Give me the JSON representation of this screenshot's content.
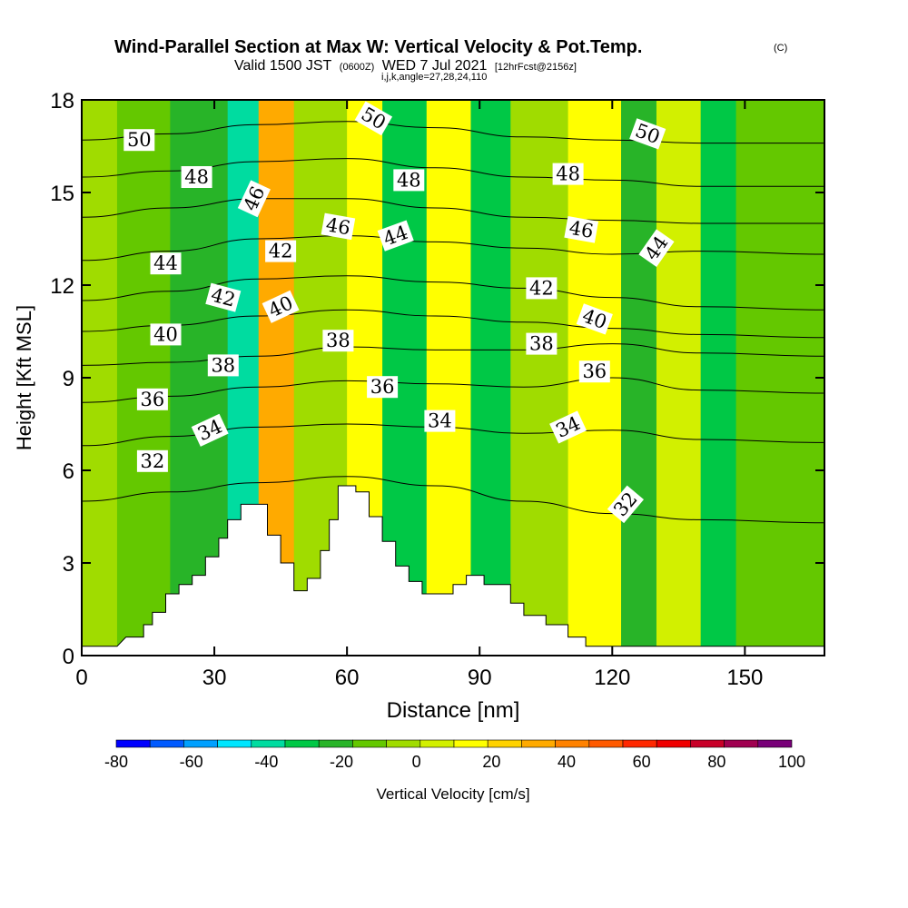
{
  "chart_data": {
    "type": "heatmap",
    "title": "Wind-Parallel Section at Max W: Vertical Velocity & Pot.Temp.",
    "title_mark": "(C)",
    "subtitle_parts": {
      "valid": "Valid 1500 JST",
      "utc": "(0600Z)",
      "date": "WED 7 Jul 2021",
      "fcst": "[12hrFcst@2156z]"
    },
    "subtitle2": "i,j,k,angle=27,28,24,110",
    "xlabel": "Distance [nm]",
    "ylabel": "Height [Kft MSL]",
    "xlim": [
      0,
      168
    ],
    "ylim": [
      0,
      18
    ],
    "x_ticks": [
      "0",
      "30",
      "60",
      "90",
      "120",
      "150"
    ],
    "y_ticks": [
      "0",
      "3",
      "6",
      "9",
      "12",
      "15",
      "18"
    ],
    "colorbar": {
      "title": "Vertical Velocity [cm/s]",
      "labels": [
        "-80",
        "-60",
        "-40",
        "-20",
        "0",
        "20",
        "40",
        "60",
        "80",
        "100"
      ],
      "colors": [
        "#0000ff",
        "#005aff",
        "#00a0ff",
        "#00e6ff",
        "#00dca0",
        "#00c846",
        "#28b428",
        "#64c800",
        "#a0dc00",
        "#d2f000",
        "#ffff00",
        "#ffd200",
        "#ffaa00",
        "#ff8200",
        "#ff5a00",
        "#ff2800",
        "#f00000",
        "#c80028",
        "#a00050",
        "#780078"
      ]
    },
    "velocity_cells": [
      {
        "x0": 0,
        "x1": 8,
        "y0": 0,
        "y1": 18,
        "v": 0
      },
      {
        "x0": 8,
        "x1": 20,
        "y0": 0,
        "y1": 18,
        "v": -5
      },
      {
        "x0": 20,
        "x1": 33,
        "y0": 0,
        "y1": 18,
        "v": -15
      },
      {
        "x0": 33,
        "x1": 40,
        "y0": 0,
        "y1": 18,
        "v": -35
      },
      {
        "x0": 40,
        "x1": 48,
        "y0": 0,
        "y1": 18,
        "v": 45
      },
      {
        "x0": 48,
        "x1": 60,
        "y0": 0,
        "y1": 18,
        "v": 5
      },
      {
        "x0": 60,
        "x1": 68,
        "y0": 0,
        "y1": 18,
        "v": 25
      },
      {
        "x0": 68,
        "x1": 78,
        "y0": 0,
        "y1": 18,
        "v": -25
      },
      {
        "x0": 78,
        "x1": 88,
        "y0": 0,
        "y1": 18,
        "v": 25
      },
      {
        "x0": 88,
        "x1": 97,
        "y0": 0,
        "y1": 18,
        "v": -30
      },
      {
        "x0": 97,
        "x1": 110,
        "y0": 0,
        "y1": 18,
        "v": 0
      },
      {
        "x0": 110,
        "x1": 122,
        "y0": 0,
        "y1": 18,
        "v": 25
      },
      {
        "x0": 122,
        "x1": 130,
        "y0": 0,
        "y1": 18,
        "v": -15
      },
      {
        "x0": 130,
        "x1": 140,
        "y0": 0,
        "y1": 18,
        "v": 15
      },
      {
        "x0": 140,
        "x1": 148,
        "y0": 0,
        "y1": 18,
        "v": -25
      },
      {
        "x0": 148,
        "x1": 168,
        "y0": 0,
        "y1": 18,
        "v": -5
      }
    ],
    "terrain": [
      [
        0,
        0.3
      ],
      [
        8,
        0.3
      ],
      [
        10,
        0.6
      ],
      [
        14,
        0.6
      ],
      [
        14,
        1
      ],
      [
        16,
        1
      ],
      [
        16,
        1.4
      ],
      [
        19,
        1.4
      ],
      [
        19,
        2
      ],
      [
        22,
        2
      ],
      [
        22,
        2.3
      ],
      [
        25,
        2.3
      ],
      [
        25,
        2.6
      ],
      [
        28,
        2.6
      ],
      [
        28,
        3.2
      ],
      [
        31,
        3.2
      ],
      [
        31,
        3.8
      ],
      [
        33,
        3.8
      ],
      [
        33,
        4.4
      ],
      [
        36,
        4.4
      ],
      [
        36,
        4.9
      ],
      [
        42,
        4.9
      ],
      [
        42,
        3.9
      ],
      [
        45,
        3.9
      ],
      [
        45,
        3.0
      ],
      [
        48,
        3.0
      ],
      [
        48,
        2.1
      ],
      [
        51,
        2.1
      ],
      [
        51,
        2.5
      ],
      [
        54,
        2.5
      ],
      [
        54,
        3.4
      ],
      [
        56,
        3.4
      ],
      [
        56,
        4.4
      ],
      [
        58,
        4.4
      ],
      [
        58,
        5.5
      ],
      [
        62,
        5.5
      ],
      [
        62,
        5.3
      ],
      [
        65,
        5.3
      ],
      [
        65,
        4.5
      ],
      [
        68,
        4.5
      ],
      [
        68,
        3.7
      ],
      [
        71,
        3.7
      ],
      [
        71,
        2.9
      ],
      [
        74,
        2.9
      ],
      [
        74,
        2.4
      ],
      [
        77,
        2.4
      ],
      [
        77,
        2.0
      ],
      [
        84,
        2.0
      ],
      [
        84,
        2.3
      ],
      [
        87,
        2.3
      ],
      [
        87,
        2.6
      ],
      [
        91,
        2.6
      ],
      [
        91,
        2.3
      ],
      [
        97,
        2.3
      ],
      [
        97,
        1.7
      ],
      [
        100,
        1.7
      ],
      [
        100,
        1.3
      ],
      [
        105,
        1.3
      ],
      [
        105,
        1.0
      ],
      [
        110,
        1.0
      ],
      [
        110,
        0.6
      ],
      [
        114,
        0.6
      ],
      [
        114,
        0.3
      ],
      [
        168,
        0.3
      ]
    ],
    "theta_contours": [
      {
        "value": "32",
        "x": [
          0,
          20,
          40,
          60,
          80,
          100,
          120,
          140,
          168
        ],
        "y": [
          5.0,
          5.3,
          5.6,
          5.8,
          5.5,
          5.0,
          4.6,
          4.4,
          4.3
        ]
      },
      {
        "value": "34",
        "x": [
          0,
          20,
          40,
          60,
          80,
          100,
          120,
          140,
          168
        ],
        "y": [
          6.8,
          7.1,
          7.4,
          7.5,
          7.4,
          7.2,
          7.3,
          7.0,
          6.9
        ]
      },
      {
        "value": "36",
        "x": [
          0,
          20,
          40,
          60,
          80,
          100,
          120,
          140,
          168
        ],
        "y": [
          8.2,
          8.4,
          8.7,
          8.9,
          8.8,
          8.7,
          9.0,
          8.6,
          8.5
        ]
      },
      {
        "value": "38",
        "x": [
          0,
          20,
          40,
          60,
          80,
          100,
          120,
          140,
          168
        ],
        "y": [
          9.4,
          9.5,
          9.7,
          10.0,
          9.9,
          9.9,
          10.1,
          9.8,
          9.7
        ]
      },
      {
        "value": "40",
        "x": [
          0,
          20,
          40,
          60,
          80,
          100,
          120,
          140,
          168
        ],
        "y": [
          10.5,
          10.7,
          11.0,
          11.2,
          11.0,
          10.8,
          10.6,
          10.4,
          10.3
        ]
      },
      {
        "value": "42",
        "x": [
          0,
          20,
          40,
          60,
          80,
          100,
          120,
          140,
          168
        ],
        "y": [
          11.5,
          11.8,
          12.2,
          12.3,
          12.1,
          11.9,
          11.6,
          11.3,
          11.2
        ]
      },
      {
        "value": "44",
        "x": [
          0,
          20,
          40,
          60,
          80,
          100,
          120,
          140,
          168
        ],
        "y": [
          12.8,
          13.1,
          13.5,
          13.6,
          13.4,
          13.2,
          13.0,
          13.1,
          13.0
        ]
      },
      {
        "value": "46",
        "x": [
          0,
          20,
          40,
          60,
          80,
          100,
          120,
          140,
          168
        ],
        "y": [
          14.2,
          14.5,
          14.8,
          14.8,
          14.5,
          14.2,
          14.1,
          14.0,
          14.0
        ]
      },
      {
        "value": "48",
        "x": [
          0,
          20,
          40,
          60,
          80,
          100,
          120,
          140,
          168
        ],
        "y": [
          15.5,
          15.7,
          16.0,
          16.1,
          15.8,
          15.5,
          15.4,
          15.2,
          15.2
        ]
      },
      {
        "value": "50",
        "x": [
          0,
          20,
          40,
          60,
          80,
          100,
          120,
          140,
          168
        ],
        "y": [
          16.7,
          16.9,
          17.2,
          17.3,
          17.1,
          16.8,
          16.7,
          16.6,
          16.6
        ]
      }
    ],
    "contour_labels": [
      {
        "text": "50",
        "x": 13,
        "y": 16.7,
        "angle": 0
      },
      {
        "text": "48",
        "x": 26,
        "y": 15.5,
        "angle": 0
      },
      {
        "text": "46",
        "x": 39,
        "y": 14.8,
        "angle": -65
      },
      {
        "text": "44",
        "x": 19,
        "y": 12.7,
        "angle": 0
      },
      {
        "text": "42",
        "x": 32,
        "y": 11.6,
        "angle": 15
      },
      {
        "text": "40",
        "x": 19,
        "y": 10.4,
        "angle": 0
      },
      {
        "text": "38",
        "x": 32,
        "y": 9.4,
        "angle": 0
      },
      {
        "text": "36",
        "x": 16,
        "y": 8.3,
        "angle": 0
      },
      {
        "text": "34",
        "x": 29,
        "y": 7.3,
        "angle": -25
      },
      {
        "text": "32",
        "x": 16,
        "y": 6.3,
        "angle": 0
      },
      {
        "text": "42",
        "x": 45,
        "y": 13.1,
        "angle": 0
      },
      {
        "text": "40",
        "x": 45,
        "y": 11.3,
        "angle": -25
      },
      {
        "text": "50",
        "x": 66,
        "y": 17.4,
        "angle": 30
      },
      {
        "text": "48",
        "x": 74,
        "y": 15.4,
        "angle": 0
      },
      {
        "text": "46",
        "x": 58,
        "y": 13.9,
        "angle": 10
      },
      {
        "text": "44",
        "x": 71,
        "y": 13.6,
        "angle": -20
      },
      {
        "text": "38",
        "x": 58,
        "y": 10.2,
        "angle": 0
      },
      {
        "text": "36",
        "x": 68,
        "y": 8.7,
        "angle": 0
      },
      {
        "text": "34",
        "x": 81,
        "y": 7.6,
        "angle": 0
      },
      {
        "text": "48",
        "x": 110,
        "y": 15.6,
        "angle": 0
      },
      {
        "text": "50",
        "x": 128,
        "y": 16.9,
        "angle": 20
      },
      {
        "text": "46",
        "x": 113,
        "y": 13.8,
        "angle": 10
      },
      {
        "text": "44",
        "x": 130,
        "y": 13.2,
        "angle": -55
      },
      {
        "text": "42",
        "x": 104,
        "y": 11.9,
        "angle": 0
      },
      {
        "text": "40",
        "x": 116,
        "y": 10.9,
        "angle": 20
      },
      {
        "text": "38",
        "x": 104,
        "y": 10.1,
        "angle": 0
      },
      {
        "text": "36",
        "x": 116,
        "y": 9.2,
        "angle": 0
      },
      {
        "text": "34",
        "x": 110,
        "y": 7.4,
        "angle": -25
      },
      {
        "text": "32",
        "x": 123,
        "y": 4.9,
        "angle": -50
      }
    ]
  }
}
